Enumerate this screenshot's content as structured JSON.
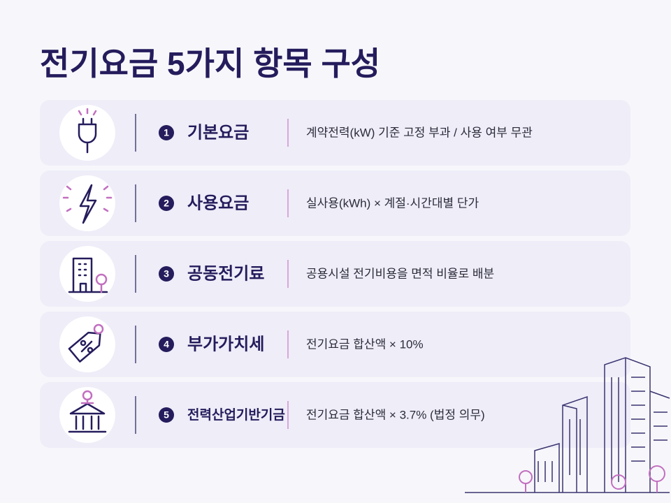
{
  "header": {
    "title": "전기요금 5가지 항목 구성"
  },
  "items": [
    {
      "number": 1,
      "name": "기본요금",
      "description": "계약전력(kW) 기준 고정 부과 / 사용 여부 무관"
    },
    {
      "number": 2,
      "name": "사용요금",
      "description": "실사용(kWh) × 계절·시간대별 단가"
    },
    {
      "number": 3,
      "name": "공동전기료",
      "description": "공용시설 전기비용을 면적 비율로 배분"
    },
    {
      "number": 4,
      "name": "부가가치세",
      "description": "전기요금 합산액 × 10%"
    },
    {
      "number": 5,
      "name": "전력산업기반기금",
      "description": "전기요금 합산액 × 3.7% (법정 의무)"
    }
  ]
}
